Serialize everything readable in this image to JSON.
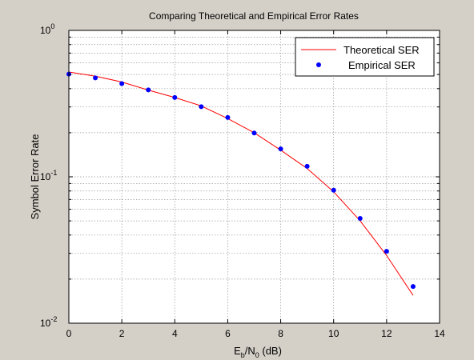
{
  "chart_data": {
    "type": "line",
    "title": "Comparing Theoretical and Empirical Error Rates",
    "xlabel": {
      "base": "E",
      "sub1": "b",
      "mid": "/N",
      "sub2": "0",
      "tail": " (dB)"
    },
    "ylabel": "Symbol Error Rate",
    "xlim": [
      0,
      14
    ],
    "ylim": [
      0.01,
      1
    ],
    "yscale": "log",
    "grid": true,
    "legend_position": "top-right",
    "x_ticks": [
      0,
      2,
      4,
      6,
      8,
      10,
      12,
      14
    ],
    "y_ticks": [
      {
        "value": 1,
        "base": "10",
        "exp": "0"
      },
      {
        "value": 0.1,
        "base": "10",
        "exp": "-1"
      },
      {
        "value": 0.01,
        "base": "10",
        "exp": "-2"
      }
    ],
    "series": [
      {
        "name": "Theoretical SER",
        "style": "line",
        "color": "#ff0000",
        "x": [
          0,
          1,
          2,
          3,
          4,
          5,
          6,
          7,
          8,
          9,
          10,
          11,
          12,
          13
        ],
        "y": [
          0.52,
          0.487,
          0.444,
          0.391,
          0.348,
          0.305,
          0.25,
          0.2,
          0.152,
          0.114,
          0.079,
          0.05,
          0.029,
          0.0155
        ]
      },
      {
        "name": "Empirical SER",
        "style": "markers",
        "color": "#0000ff",
        "x": [
          0,
          1,
          2,
          3,
          4,
          5,
          6,
          7,
          8,
          9,
          10,
          11,
          12,
          13
        ],
        "y": [
          0.503,
          0.474,
          0.433,
          0.392,
          0.348,
          0.301,
          0.254,
          0.199,
          0.155,
          0.118,
          0.081,
          0.052,
          0.031,
          0.0178
        ]
      }
    ]
  },
  "colors": {
    "figure_bg": "#d4d0c8",
    "axes_bg": "#ffffff",
    "grid": "#999999",
    "axis": "#000000"
  }
}
